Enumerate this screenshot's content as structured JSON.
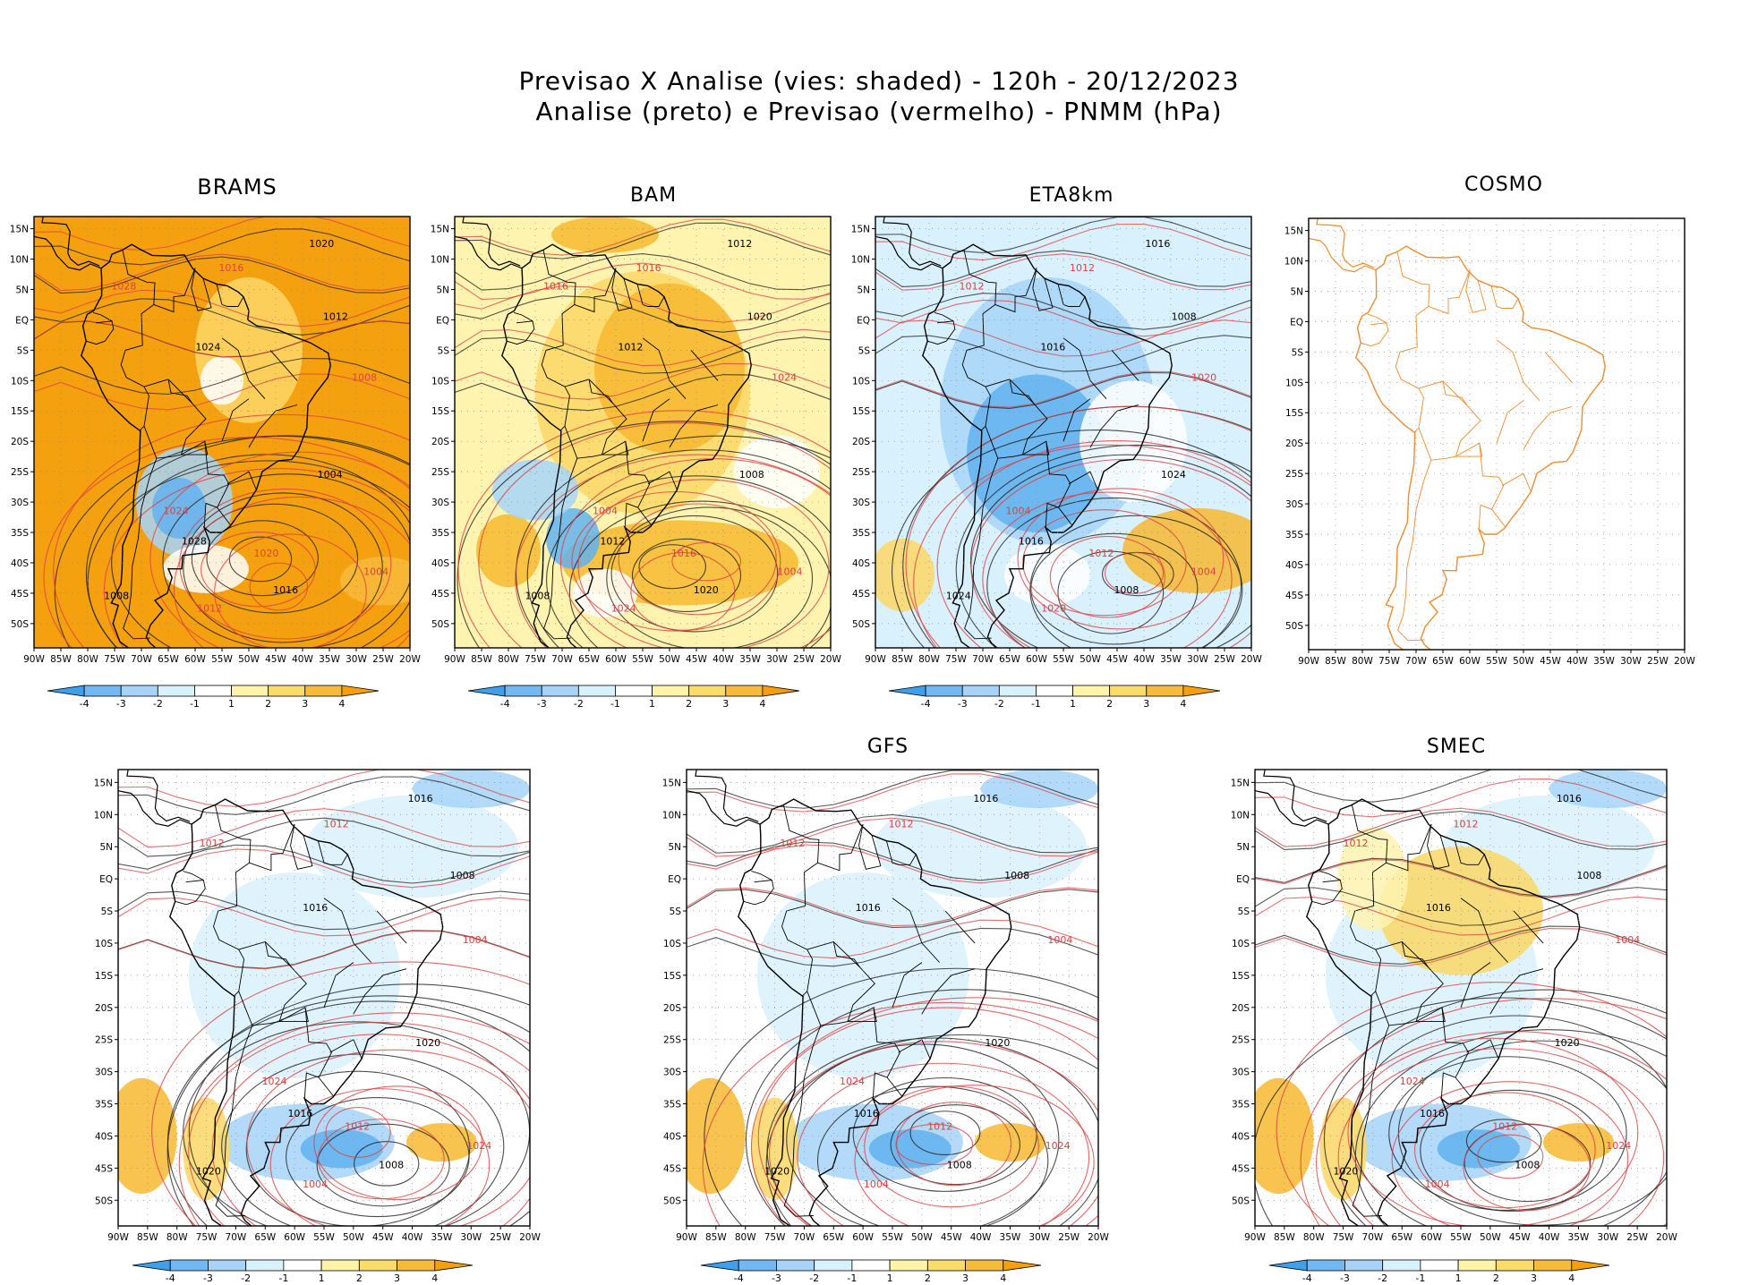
{
  "title": {
    "line1": "Previsao X Analise (vies: shaded) - 120h - 20/12/2023",
    "line2": "Analise (preto) e Previsao (vermelho) - PNMM (hPa)"
  },
  "axes": {
    "lat_labels": [
      "15N",
      "10N",
      "5N",
      "EQ",
      "5S",
      "10S",
      "15S",
      "20S",
      "25S",
      "30S",
      "35S",
      "40S",
      "45S",
      "50S"
    ],
    "lon_labels": [
      "90W",
      "85W",
      "80W",
      "75W",
      "70W",
      "65W",
      "60W",
      "55W",
      "50W",
      "45W",
      "40W",
      "35W",
      "30W",
      "25W",
      "20W"
    ]
  },
  "colorbar": {
    "labels": [
      "-4",
      "-3",
      "-2",
      "-1",
      "1",
      "2",
      "3",
      "4"
    ],
    "colors": [
      "#3f9fe8",
      "#72b8f3",
      "#a8d3f8",
      "#d8f2fb",
      "#ffffff",
      "#fff4a8",
      "#fbdc6a",
      "#f7bb3c",
      "#f59e0e"
    ]
  },
  "colors": {
    "land_outline_analysis": "#000000",
    "forecast_contour": "#e04040",
    "analysis_contour": "#202020",
    "cosmo_outline": "#f08c2e"
  },
  "panels": [
    {
      "id": "brams",
      "title": "BRAMS",
      "mode": "warm",
      "labels": [
        "1020",
        "1016",
        "1012",
        "1008",
        "1004",
        "1024",
        "1028"
      ]
    },
    {
      "id": "bam",
      "title": "BAM",
      "mode": "mixed",
      "labels": [
        "1012",
        "1016",
        "1020",
        "1024",
        "1008",
        "1004"
      ]
    },
    {
      "id": "eta8km",
      "title": "ETA8km",
      "mode": "cool",
      "labels": [
        "1016",
        "1012",
        "1008",
        "1020",
        "1024",
        "1004"
      ]
    },
    {
      "id": "cosmo",
      "title": "COSMO",
      "mode": "empty",
      "labels": []
    },
    {
      "id": "unnamed",
      "title": "",
      "mode": "light",
      "labels": [
        "1016",
        "1012",
        "1008",
        "1004",
        "1020",
        "1024"
      ]
    },
    {
      "id": "gfs",
      "title": "GFS",
      "mode": "light",
      "labels": [
        "1016",
        "1012",
        "1008",
        "1004",
        "1020",
        "1024"
      ]
    },
    {
      "id": "smec",
      "title": "SMEC",
      "mode": "lightwarm",
      "labels": [
        "1016",
        "1012",
        "1008",
        "1004",
        "1020",
        "1024"
      ]
    }
  ]
}
